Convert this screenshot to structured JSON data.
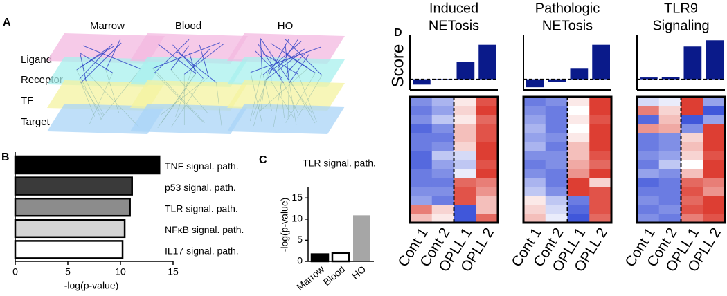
{
  "panel_a": {
    "panel_label": "A",
    "columns": [
      "Marrow",
      "Blood",
      "HO"
    ],
    "layers": [
      "Ligand",
      "Receptor",
      "TF",
      "Target"
    ]
  },
  "chart_data": [
    {
      "type": "hbar",
      "panel_label": "B",
      "categories": [
        "TNF signal. path.",
        "p53 signal. path.",
        "TLR signal. path.",
        "NFκB signal. path.",
        "IL17 signal. path."
      ],
      "values": [
        13.7,
        11.1,
        10.9,
        10.4,
        10.2
      ],
      "colors": [
        "#000000",
        "#3a3a3a",
        "#8c8c8c",
        "#d4d4d4",
        "#ffffff"
      ],
      "xlim": [
        0,
        15
      ],
      "xticks": [
        0,
        5,
        10,
        15
      ],
      "xlabel": "-log(p-value)"
    },
    {
      "type": "bar",
      "panel_label": "C",
      "title": "TLR signal. path.",
      "categories": [
        "Marrow",
        "Blood",
        "HO"
      ],
      "values": [
        1.7,
        2.0,
        10.9
      ],
      "colors": [
        "#000000",
        "#ffffff",
        "#a6a6a6"
      ],
      "ylim": [
        0,
        17.5
      ],
      "yticks": [
        0,
        5,
        10,
        15
      ],
      "ylabel": "-log(p-value)"
    },
    {
      "type": "score_heatmap",
      "panel_label": "D",
      "title": [
        "Induced",
        "NETosis"
      ],
      "ylabel": "Score",
      "categories": [
        "Cont 1",
        "Cont 2",
        "OPLL 1",
        "OPLL 2"
      ],
      "values": [
        -0.3,
        0.02,
        1.0,
        1.95
      ],
      "color": "#0a1a8a",
      "ylim": [
        -0.6,
        2.25
      ],
      "zlim": [
        -1,
        1
      ],
      "colorscale": [
        "#2b44d6",
        "#ffffff",
        "#d9281c"
      ],
      "z": [
        [
          -0.6,
          -0.4,
          0.1,
          0.8
        ],
        [
          -0.7,
          -0.5,
          0.2,
          0.9
        ],
        [
          -0.6,
          -0.3,
          0.1,
          0.7
        ],
        [
          -0.8,
          -0.6,
          0.3,
          0.8
        ],
        [
          -0.7,
          -0.7,
          0.3,
          0.8
        ],
        [
          -0.7,
          -0.6,
          0.2,
          0.9
        ],
        [
          -0.8,
          -0.3,
          -0.2,
          0.9
        ],
        [
          -0.8,
          -0.5,
          -0.3,
          0.8
        ],
        [
          -0.7,
          -0.6,
          -0.1,
          0.9
        ],
        [
          -0.7,
          -0.7,
          0.7,
          0.6
        ],
        [
          -0.6,
          -0.6,
          0.8,
          0.5
        ],
        [
          -0.5,
          -0.7,
          0.8,
          0.3
        ],
        [
          0.6,
          0.2,
          -0.9,
          0.3
        ],
        [
          0.3,
          0.1,
          -0.9,
          0.7
        ]
      ]
    },
    {
      "type": "score_heatmap",
      "title": [
        "Pathologic",
        "NETosis"
      ],
      "categories": [
        "Cont 1",
        "Cont 2",
        "OPLL 1",
        "OPLL 2"
      ],
      "values": [
        -0.45,
        -0.15,
        0.6,
        1.95
      ],
      "color": "#0a1a8a",
      "ylim": [
        -0.6,
        2.25
      ],
      "zlim": [
        -1,
        1
      ],
      "colorscale": [
        "#2b44d6",
        "#ffffff",
        "#d9281c"
      ],
      "z": [
        [
          -0.7,
          -0.6,
          0.1,
          0.9
        ],
        [
          -0.6,
          -0.7,
          0.0,
          0.9
        ],
        [
          -0.5,
          -0.7,
          0.1,
          0.8
        ],
        [
          -0.4,
          -0.7,
          0.0,
          0.9
        ],
        [
          -0.5,
          -0.6,
          0.1,
          0.9
        ],
        [
          -0.4,
          -0.7,
          0.3,
          0.9
        ],
        [
          -0.6,
          -0.6,
          0.3,
          0.8
        ],
        [
          -0.7,
          -0.6,
          0.4,
          0.7
        ],
        [
          -0.6,
          -0.7,
          0.5,
          0.9
        ],
        [
          -0.4,
          -0.7,
          0.9,
          0.2
        ],
        [
          -0.3,
          -0.6,
          0.9,
          0.8
        ],
        [
          0.1,
          -0.3,
          -0.7,
          0.8
        ],
        [
          0.2,
          -0.2,
          -0.8,
          0.8
        ],
        [
          0.3,
          -0.1,
          -0.9,
          0.7
        ]
      ]
    },
    {
      "type": "score_heatmap",
      "title": [
        "TLR9",
        "Signaling"
      ],
      "categories": [
        "Cont 1",
        "Cont 2",
        "OPLL 1",
        "OPLL 2"
      ],
      "values": [
        0.1,
        0.12,
        1.85,
        2.2
      ],
      "color": "#0a1a8a",
      "ylim": [
        -0.6,
        2.25
      ],
      "zlim": [
        -1,
        1
      ],
      "colorscale": [
        "#2b44d6",
        "#ffffff",
        "#d9281c"
      ],
      "z": [
        [
          -0.2,
          -0.1,
          0.9,
          -0.5
        ],
        [
          0.6,
          0.2,
          0.9,
          -0.9
        ],
        [
          -0.8,
          0.3,
          -0.9,
          -0.5
        ],
        [
          0.5,
          0.4,
          -0.6,
          0.9
        ],
        [
          -0.7,
          -0.6,
          0.2,
          0.9
        ],
        [
          -0.7,
          -0.6,
          0.3,
          0.9
        ],
        [
          -0.6,
          -0.5,
          0.2,
          0.8
        ],
        [
          -0.7,
          -0.3,
          0.0,
          0.9
        ],
        [
          -0.5,
          -0.6,
          0.3,
          0.9
        ],
        [
          -0.8,
          -0.7,
          0.7,
          0.6
        ],
        [
          -0.7,
          -0.7,
          0.8,
          0.5
        ],
        [
          -0.6,
          -0.7,
          0.7,
          0.9
        ],
        [
          -0.7,
          -0.6,
          0.8,
          0.9
        ],
        [
          -0.6,
          -0.7,
          0.6,
          0.8
        ]
      ]
    }
  ]
}
